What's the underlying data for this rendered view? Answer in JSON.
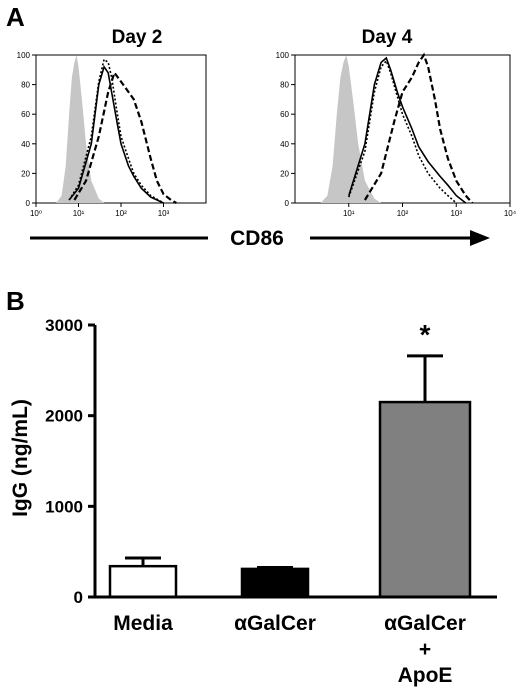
{
  "panel_a_label": "A",
  "panel_b_label": "B",
  "shared_x_label": "CD86",
  "chart_data": [
    {
      "type": "line",
      "panel": "A",
      "title": "Day 2",
      "xscale": "log",
      "xlim": [
        1,
        10000
      ],
      "ylim": [
        0,
        100
      ],
      "x_ticks": [
        1,
        10,
        100,
        1000
      ],
      "x_tick_labels": [
        "10⁰",
        "10¹",
        "10²",
        "10³"
      ],
      "y_ticks": [
        0,
        20,
        40,
        60,
        80,
        100
      ],
      "series": [
        {
          "style": "filled-gray",
          "x": [
            3,
            4,
            5,
            6,
            7,
            8,
            9,
            10,
            12,
            15,
            20,
            30,
            40
          ],
          "y": [
            0,
            5,
            25,
            60,
            85,
            95,
            100,
            92,
            70,
            40,
            15,
            3,
            0
          ]
        },
        {
          "style": "solid",
          "x": [
            6,
            10,
            20,
            30,
            40,
            50,
            60,
            80,
            100,
            150,
            200,
            300,
            500,
            1000
          ],
          "y": [
            2,
            10,
            40,
            80,
            92,
            88,
            75,
            55,
            40,
            25,
            18,
            10,
            4,
            0
          ]
        },
        {
          "style": "dotted",
          "x": [
            6,
            10,
            20,
            30,
            40,
            50,
            60,
            80,
            100,
            150,
            200,
            300,
            500,
            1000
          ],
          "y": [
            2,
            12,
            45,
            82,
            97,
            95,
            85,
            62,
            45,
            30,
            20,
            12,
            5,
            0
          ]
        },
        {
          "style": "dashed",
          "x": [
            8,
            15,
            30,
            50,
            70,
            100,
            150,
            200,
            300,
            500,
            700,
            1000,
            1500,
            2000
          ],
          "y": [
            2,
            15,
            45,
            75,
            88,
            82,
            75,
            70,
            55,
            30,
            15,
            6,
            2,
            0
          ]
        }
      ]
    },
    {
      "type": "line",
      "panel": "A",
      "title": "Day 4",
      "xscale": "log",
      "xlim": [
        1,
        10000
      ],
      "ylim": [
        0,
        100
      ],
      "x_ticks": [
        10,
        100,
        1000,
        10000
      ],
      "x_tick_labels": [
        "10¹",
        "10²",
        "10³",
        "10⁴"
      ],
      "y_ticks": [
        0,
        20,
        40,
        60,
        80,
        100
      ],
      "series": [
        {
          "style": "filled-gray",
          "x": [
            3,
            4,
            5,
            6,
            7,
            8,
            9,
            10,
            12,
            15,
            20,
            30,
            40
          ],
          "y": [
            0,
            5,
            25,
            60,
            85,
            95,
            100,
            92,
            70,
            40,
            15,
            3,
            0
          ]
        },
        {
          "style": "solid",
          "x": [
            10,
            20,
            30,
            40,
            50,
            60,
            80,
            100,
            150,
            200,
            300,
            500,
            700,
            1000,
            1500
          ],
          "y": [
            5,
            40,
            80,
            95,
            98,
            90,
            75,
            65,
            50,
            38,
            28,
            18,
            12,
            5,
            0
          ]
        },
        {
          "style": "dotted",
          "x": [
            10,
            20,
            30,
            40,
            50,
            60,
            80,
            100,
            150,
            200,
            300,
            500,
            700,
            1000
          ],
          "y": [
            4,
            35,
            75,
            92,
            96,
            88,
            72,
            60,
            45,
            32,
            20,
            10,
            5,
            0
          ]
        },
        {
          "style": "dashed",
          "x": [
            20,
            40,
            70,
            100,
            150,
            200,
            250,
            300,
            400,
            500,
            700,
            1000,
            1500,
            2000
          ],
          "y": [
            2,
            20,
            55,
            75,
            85,
            95,
            100,
            92,
            70,
            50,
            30,
            15,
            5,
            0
          ]
        }
      ]
    },
    {
      "type": "bar",
      "panel": "B",
      "ylabel": "IgG (ng/mL)",
      "ylim": [
        0,
        3000
      ],
      "y_ticks": [
        0,
        1000,
        2000,
        3000
      ],
      "categories": [
        "Media",
        "αGalCer",
        "αGalCer + ApoE"
      ],
      "category_lines": [
        [
          "Media"
        ],
        [
          "αGalCer"
        ],
        [
          "αGalCer",
          "+",
          "ApoE"
        ]
      ],
      "values": [
        340,
        310,
        2150
      ],
      "errors": [
        90,
        15,
        510
      ],
      "colors": [
        "#ffffff",
        "#000000",
        "#808080"
      ],
      "annotations": [
        {
          "category": "αGalCer + ApoE",
          "text": "*"
        }
      ]
    }
  ]
}
